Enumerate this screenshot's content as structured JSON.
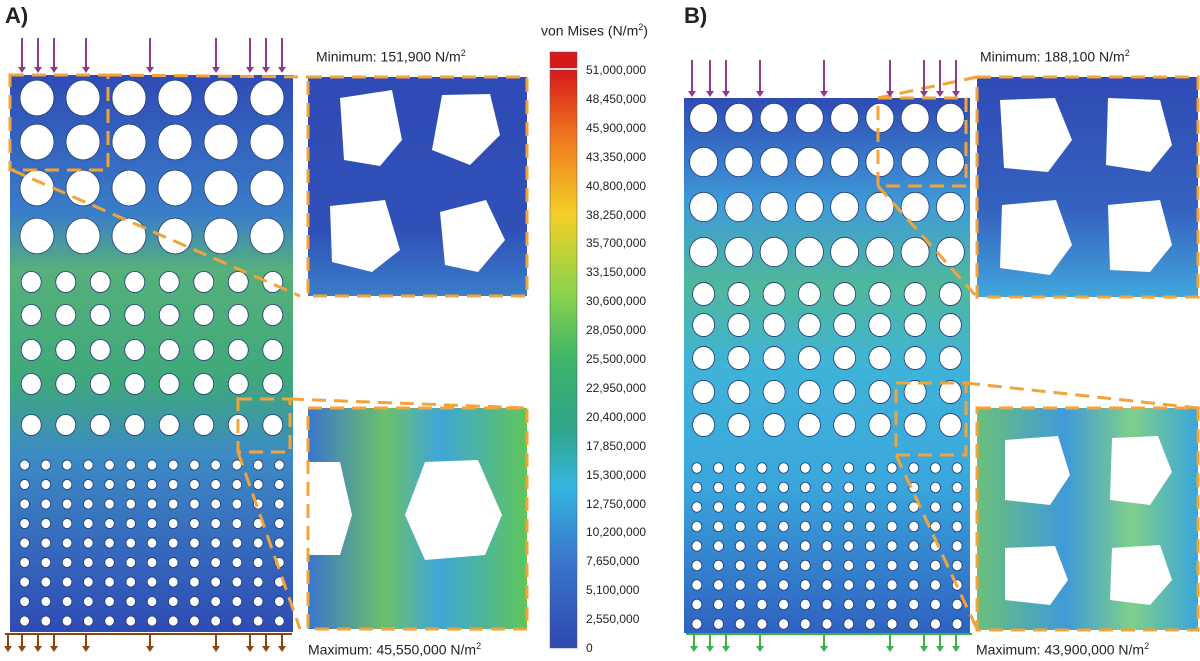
{
  "panels": [
    {
      "label": "A)",
      "minimum_label": "Minimum: 151,900 N/m",
      "maximum_label": "Maximum: 45,550,000 N/m",
      "unit_superscript": "2"
    },
    {
      "label": "B)",
      "minimum_label": "Minimum: 188,100 N/m",
      "maximum_label": "Maximum: 43,900,000 N/m",
      "unit_superscript": "2"
    }
  ],
  "legend": {
    "title": "von Mises (N/m",
    "title_superscript": "2",
    "title_suffix": ")",
    "ticks": [
      "51,000,000",
      "48,450,000",
      "45,900,000",
      "43,350,000",
      "40,800,000",
      "38,250,000",
      "35,700,000",
      "33,150,000",
      "30,600,000",
      "28,050,000",
      "25,500,000",
      "22,950,000",
      "20,400,000",
      "17,850,000",
      "15,300,000",
      "12,750,000",
      "10,200,000",
      "7,650,000",
      "5,100,000",
      "2,550,000",
      "0"
    ],
    "colors": [
      "#d7191c",
      "#e8401e",
      "#f07a1f",
      "#f2a623",
      "#f4cf27",
      "#e6e02b",
      "#bde03a",
      "#8fd44a",
      "#5fc55a",
      "#3fb46a",
      "#2fa58a",
      "#2c9fb2",
      "#34b6df",
      "#3aa6df",
      "#3c8fd6",
      "#3a76cc",
      "#3660bd",
      "#3049ad"
    ]
  },
  "colors": {
    "overlay_dash": "#f2a33a",
    "load_arrow_top": "#8e3a8e",
    "support_arrow_a": "#8b4513",
    "support_arrow_b": "#3cb04a",
    "low_stress": "#2f48b0",
    "mid_stress": "#3fb46a"
  }
}
